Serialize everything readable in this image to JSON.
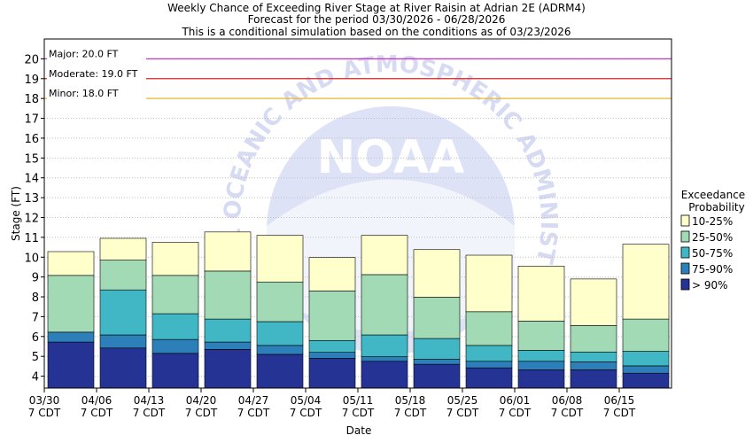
{
  "chart_data": {
    "type": "bar",
    "title_lines": [
      "Weekly Chance of Exceeding River Stage at River Raisin at Adrian 2E (ADRM4)",
      "Forecast for the period 03/30/2026 - 06/28/2026",
      "This is a conditional simulation based on the conditions as of 03/23/2026"
    ],
    "xlabel": "Date",
    "ylabel": "Stage (FT)",
    "ylim": [
      3.4,
      21
    ],
    "yticks": [
      4,
      5,
      6,
      7,
      8,
      9,
      10,
      11,
      12,
      13,
      14,
      15,
      16,
      17,
      18,
      19,
      20
    ],
    "x_ticks": [
      {
        "date": "03/30",
        "tz": "7 CDT"
      },
      {
        "date": "04/06",
        "tz": "7 CDT"
      },
      {
        "date": "04/13",
        "tz": "7 CDT"
      },
      {
        "date": "04/20",
        "tz": "7 CDT"
      },
      {
        "date": "04/27",
        "tz": "7 CDT"
      },
      {
        "date": "05/04",
        "tz": "7 CDT"
      },
      {
        "date": "05/11",
        "tz": "7 CDT"
      },
      {
        "date": "05/18",
        "tz": "7 CDT"
      },
      {
        "date": "05/25",
        "tz": "7 CDT"
      },
      {
        "date": "06/01",
        "tz": "7 CDT"
      },
      {
        "date": "06/08",
        "tz": "7 CDT"
      },
      {
        "date": "06/15",
        "tz": "7 CDT"
      }
    ],
    "thresholds": [
      {
        "label": "Major: 20.0 FT",
        "value": 20.0,
        "color": "#cc33cc"
      },
      {
        "label": "Moderate: 19.0 FT",
        "value": 19.0,
        "color": "#dd2222"
      },
      {
        "label": "Minor: 18.0 FT",
        "value": 18.0,
        "color": "#e8b830"
      }
    ],
    "legend": {
      "title_lines": [
        "Exceedance",
        "Probability"
      ],
      "position": "right",
      "items": [
        {
          "label": "10-25%",
          "color": "#ffffcc"
        },
        {
          "label": "25-50%",
          "color": "#a1dab4"
        },
        {
          "label": "50-75%",
          "color": "#41b6c4"
        },
        {
          "label": "75-90%",
          "color": "#2c7fb8"
        },
        {
          "label": "> 90%",
          "color": "#253494"
        }
      ]
    },
    "series": [
      {
        "name": "> 90%",
        "color": "#253494",
        "values": [
          5.72,
          5.42,
          5.15,
          5.35,
          5.1,
          4.9,
          4.75,
          4.6,
          4.42,
          4.32,
          4.32,
          4.15
        ]
      },
      {
        "name": "75-90%",
        "color": "#2c7fb8",
        "values": [
          6.22,
          6.08,
          5.85,
          5.72,
          5.55,
          5.2,
          4.98,
          4.85,
          4.75,
          4.75,
          4.72,
          4.52
        ]
      },
      {
        "name": "50-75%",
        "color": "#41b6c4",
        "values": [
          6.22,
          8.35,
          7.15,
          6.88,
          6.75,
          5.8,
          6.08,
          5.9,
          5.55,
          5.3,
          5.22,
          5.25
        ]
      },
      {
        "name": "25-50%",
        "color": "#a1dab4",
        "values": [
          9.08,
          9.85,
          9.08,
          9.3,
          8.75,
          8.3,
          9.12,
          7.98,
          7.25,
          6.78,
          6.55,
          6.88
        ]
      },
      {
        "name": "10-25%",
        "color": "#ffffcc",
        "values": [
          10.28,
          10.95,
          10.75,
          11.27,
          11.1,
          9.98,
          11.1,
          10.38,
          10.1,
          9.55,
          8.9,
          10.65
        ]
      }
    ],
    "watermark": {
      "logo_text": "NOAA",
      "ring_text": "NATIONAL OCEANIC AND ATMOSPHERIC ADMINISTRATION"
    }
  }
}
